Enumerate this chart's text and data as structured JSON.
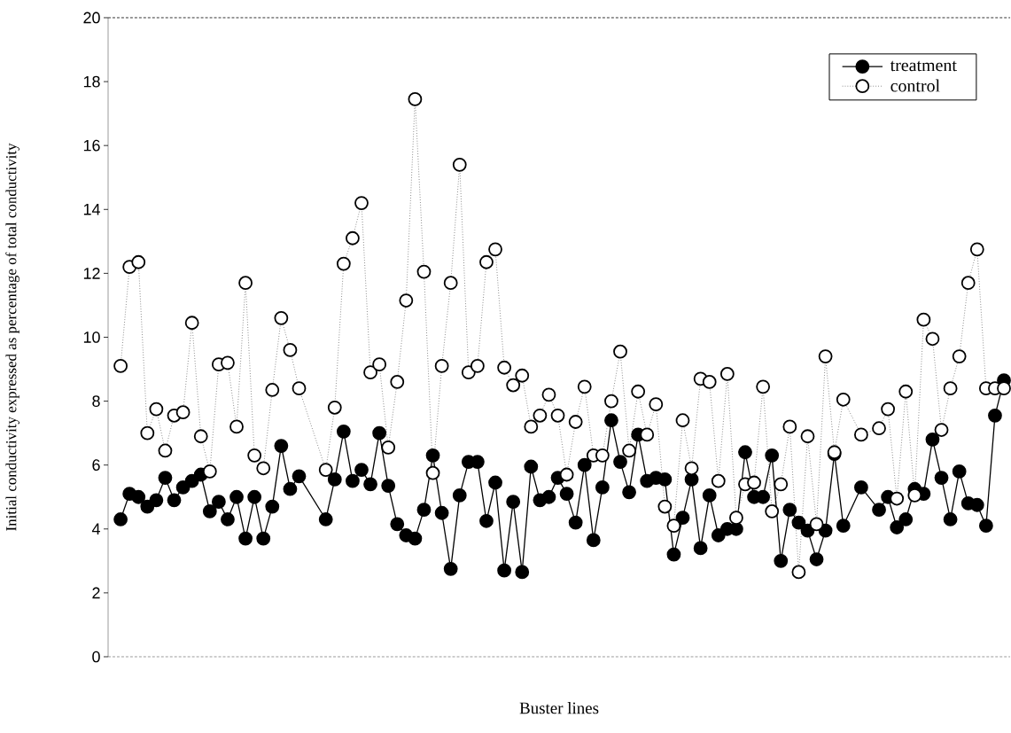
{
  "chart_data": {
    "type": "line",
    "xlabel": "Buster lines",
    "ylabel": "Initial conductivity expressed as percentage of total conductivity",
    "categories": [
      null,
      null,
      null,
      null,
      null,
      null,
      null,
      null,
      null,
      null,
      null,
      null,
      null,
      null,
      null,
      null,
      null,
      null,
      null,
      null,
      null,
      null,
      null,
      null,
      null,
      null,
      null,
      null,
      null,
      null,
      null,
      null,
      null,
      null,
      null,
      null,
      null,
      null,
      null,
      null,
      null,
      null,
      null,
      null,
      null,
      null,
      null,
      null,
      null,
      null,
      null,
      null,
      null,
      null,
      null,
      null,
      null,
      null,
      null,
      null,
      null,
      null,
      null,
      null,
      null,
      null,
      null,
      null,
      null,
      null,
      null,
      null,
      null,
      null,
      null,
      null,
      null,
      null,
      null,
      null,
      null,
      null,
      null,
      null,
      null,
      null,
      null,
      null,
      null,
      null,
      null,
      null,
      null,
      null,
      null,
      null,
      null,
      null,
      null,
      null
    ],
    "series": [
      {
        "name": "treatment",
        "color": "#000000",
        "line_style": "solid",
        "values": [
          4.3,
          5.1,
          5.0,
          4.7,
          4.9,
          5.6,
          4.9,
          5.3,
          5.5,
          5.7,
          4.55,
          4.85,
          4.3,
          5.0,
          3.7,
          5.0,
          3.7,
          4.7,
          6.6,
          5.25,
          5.65,
          null,
          null,
          4.3,
          5.55,
          7.05,
          5.5,
          5.85,
          5.4,
          7.0,
          5.35,
          4.15,
          3.8,
          3.7,
          4.6,
          6.3,
          4.5,
          2.75,
          5.05,
          6.1,
          6.1,
          4.25,
          5.45,
          2.7,
          4.85,
          2.65,
          5.95,
          4.9,
          5.0,
          5.6,
          5.1,
          4.2,
          6.0,
          3.65,
          5.3,
          7.4,
          6.1,
          5.15,
          6.95,
          5.5,
          5.6,
          5.55,
          3.2,
          4.35,
          5.55,
          3.4,
          5.05,
          3.8,
          4.0,
          4.0,
          6.4,
          5.0,
          5.0,
          6.3,
          3.0,
          4.6,
          4.2,
          3.95,
          3.05,
          3.95,
          6.35,
          4.1,
          null,
          5.3,
          null,
          4.6,
          5.0,
          4.05,
          4.3,
          5.25,
          5.1,
          6.8,
          5.6,
          4.3,
          5.8,
          4.8,
          4.75,
          4.1,
          7.55,
          8.65
        ]
      },
      {
        "name": "control",
        "color": "#ffffff",
        "line_style": "dotted",
        "values": [
          9.1,
          12.2,
          12.35,
          7.0,
          7.75,
          6.45,
          7.55,
          7.65,
          10.45,
          6.9,
          5.8,
          9.15,
          9.2,
          7.2,
          11.7,
          6.3,
          5.9,
          8.35,
          10.6,
          9.6,
          8.4,
          null,
          null,
          5.85,
          7.8,
          12.3,
          13.1,
          14.2,
          8.9,
          9.15,
          6.55,
          8.6,
          11.15,
          17.45,
          12.05,
          5.75,
          9.1,
          11.7,
          15.4,
          8.9,
          9.1,
          12.35,
          12.75,
          9.05,
          8.5,
          8.8,
          7.2,
          7.55,
          8.2,
          7.55,
          5.7,
          7.35,
          8.45,
          6.3,
          6.3,
          8.0,
          9.55,
          6.45,
          8.3,
          6.95,
          7.9,
          4.7,
          4.1,
          7.4,
          5.9,
          8.7,
          8.6,
          5.5,
          8.85,
          4.35,
          5.4,
          5.45,
          8.45,
          4.55,
          5.4,
          7.2,
          2.65,
          6.9,
          4.15,
          9.4,
          6.4,
          8.05,
          null,
          6.95,
          null,
          7.15,
          7.75,
          4.95,
          8.3,
          5.05,
          10.55,
          9.95,
          7.1,
          8.4,
          9.4,
          11.7,
          12.75,
          8.4,
          8.4,
          8.4
        ]
      }
    ],
    "ylim": [
      0,
      20
    ],
    "yticks": [
      0,
      2,
      4,
      6,
      8,
      10,
      12,
      14,
      16,
      18,
      20
    ],
    "marker": "circle",
    "legend": "top right",
    "tick_labels": "y"
  }
}
